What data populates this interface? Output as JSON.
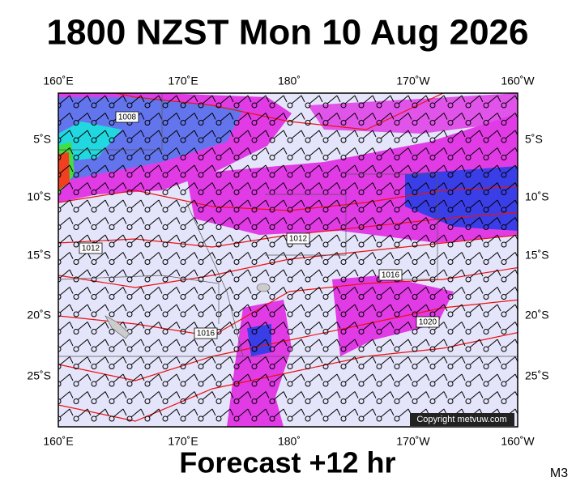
{
  "title": "1800 NZST Mon 10 Aug 2026",
  "footer": "Forecast +12 hr",
  "model": "M3",
  "map": {
    "lon_labels": [
      "160˚E",
      "170˚E",
      "180˚",
      "170˚W",
      "160˚W"
    ],
    "lat_labels": [
      "5˚S",
      "10˚S",
      "15˚S",
      "20˚S",
      "25˚S"
    ],
    "isobar_labels": [
      "1008",
      "1012",
      "1012",
      "1016",
      "1016",
      "1020"
    ],
    "copyright": "Copyright metvuw.com"
  }
}
